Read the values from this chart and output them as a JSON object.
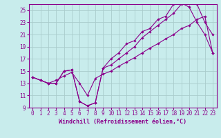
{
  "xlabel": "Windchill (Refroidissement éolien,°C)",
  "bg_color": "#c8ecec",
  "grid_color": "#aacccc",
  "line_color": "#8b008b",
  "xlim": [
    -0.5,
    23.5
  ],
  "ylim": [
    9,
    26
  ],
  "xticks": [
    0,
    1,
    2,
    3,
    4,
    5,
    6,
    7,
    8,
    9,
    10,
    11,
    12,
    13,
    14,
    15,
    16,
    17,
    18,
    19,
    20,
    21,
    22,
    23
  ],
  "yticks": [
    9,
    11,
    13,
    15,
    17,
    19,
    21,
    23,
    25
  ],
  "series1_x": [
    0,
    1,
    2,
    3,
    4,
    5,
    6,
    7,
    8,
    9,
    10,
    11,
    12,
    13,
    14,
    15,
    16,
    17,
    18,
    19,
    20,
    21,
    22,
    23
  ],
  "series1_y": [
    14.0,
    13.5,
    13.0,
    13.0,
    15.0,
    15.2,
    10.0,
    9.3,
    9.8,
    15.5,
    17.0,
    18.0,
    19.5,
    20.0,
    21.5,
    22.0,
    23.5,
    24.0,
    26.0,
    26.2,
    25.5,
    23.0,
    21.0,
    18.0
  ],
  "series2_x": [
    0,
    1,
    2,
    3,
    4,
    5,
    6,
    7,
    8,
    9,
    10,
    11,
    12,
    13,
    14,
    15,
    16,
    17,
    18,
    19,
    20,
    21,
    22,
    23
  ],
  "series2_y": [
    14.0,
    13.5,
    13.0,
    13.0,
    15.0,
    15.2,
    10.0,
    9.3,
    9.8,
    15.5,
    16.0,
    17.0,
    18.0,
    19.0,
    20.5,
    21.5,
    22.5,
    23.5,
    24.5,
    26.0,
    26.5,
    26.0,
    23.0,
    21.0
  ],
  "series3_x": [
    0,
    1,
    2,
    3,
    4,
    5,
    6,
    7,
    8,
    9,
    10,
    11,
    12,
    13,
    14,
    15,
    16,
    17,
    18,
    19,
    20,
    21,
    22,
    23
  ],
  "series3_y": [
    14.0,
    13.5,
    13.0,
    13.5,
    14.2,
    14.8,
    13.0,
    11.0,
    13.8,
    14.5,
    15.0,
    15.8,
    16.5,
    17.2,
    18.0,
    18.8,
    19.5,
    20.3,
    21.0,
    22.0,
    22.5,
    23.5,
    24.0,
    18.0
  ]
}
